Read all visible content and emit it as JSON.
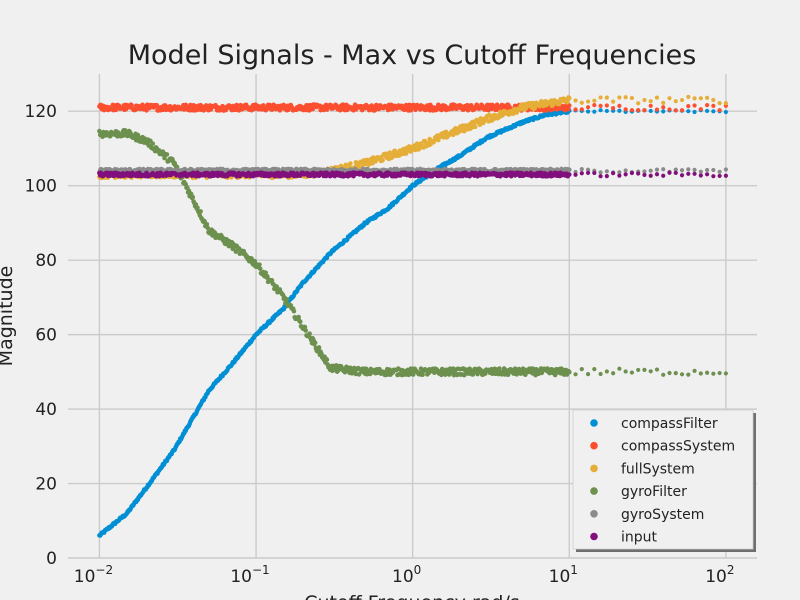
{
  "chart_data": {
    "type": "scatter",
    "title": "Model Signals - Max vs Cutoff Frequencies",
    "xlabel": "Cutoff Frequency rad/s",
    "ylabel": "Magnitude",
    "xscale": "log",
    "xlim": [
      0.0063,
      158
    ],
    "ylim": [
      0,
      130
    ],
    "x_ticks": [
      {
        "value": 0.01,
        "base": "10",
        "exp": "−2"
      },
      {
        "value": 0.1,
        "base": "10",
        "exp": "−1"
      },
      {
        "value": 1,
        "base": "10",
        "exp": "0"
      },
      {
        "value": 10,
        "base": "10",
        "exp": "1"
      },
      {
        "value": 100,
        "base": "10",
        "exp": "2"
      }
    ],
    "y_ticks": [
      "0",
      "20",
      "40",
      "60",
      "80",
      "100",
      "120"
    ],
    "grid": true,
    "legend_position": "lower-right",
    "series": [
      {
        "name": "compassFilter",
        "color": "#008fd5",
        "x": [
          0.01,
          0.015,
          0.02,
          0.03,
          0.05,
          0.07,
          0.1,
          0.15,
          0.2,
          0.3,
          0.5,
          0.7,
          1.0,
          1.5,
          2,
          3,
          5,
          7,
          10,
          15,
          20,
          30,
          50,
          70,
          100
        ],
        "values": [
          6,
          12,
          19,
          29,
          45,
          52,
          60,
          67,
          74,
          82,
          90,
          94,
          100,
          105,
          108,
          113,
          117,
          119,
          120,
          120,
          120,
          120,
          120,
          120,
          120
        ]
      },
      {
        "name": "compassSystem",
        "color": "#fc4f30",
        "x": [
          0.01,
          0.02,
          0.05,
          0.1,
          0.2,
          0.5,
          1,
          2,
          5,
          10,
          20,
          50,
          100
        ],
        "values": [
          121,
          121,
          121,
          121,
          121,
          121,
          121,
          121,
          121,
          121,
          121,
          121,
          121
        ]
      },
      {
        "name": "fullSystem",
        "color": "#e5ae38",
        "x": [
          0.01,
          0.05,
          0.1,
          0.2,
          0.3,
          0.5,
          0.7,
          1.0,
          1.5,
          2,
          3,
          5,
          7,
          10,
          20,
          50,
          100
        ],
        "values": [
          103,
          103,
          103,
          103,
          104,
          106,
          108,
          110,
          113,
          115,
          118,
          121,
          122,
          123,
          123,
          123,
          123
        ]
      },
      {
        "name": "gyroFilter",
        "color": "#6d904f",
        "x": [
          0.01,
          0.015,
          0.02,
          0.03,
          0.04,
          0.05,
          0.07,
          0.1,
          0.15,
          0.2,
          0.3,
          0.5,
          1,
          2,
          5,
          10,
          20,
          50,
          100
        ],
        "values": [
          114,
          114,
          112,
          106,
          96,
          88,
          84,
          79,
          70,
          62,
          51,
          50,
          50,
          50,
          50,
          50,
          50,
          50,
          50
        ]
      },
      {
        "name": "gyroSystem",
        "color": "#8b8b8b",
        "x": [
          0.01,
          0.02,
          0.05,
          0.1,
          0.2,
          0.5,
          1,
          2,
          5,
          10,
          20,
          50,
          100
        ],
        "values": [
          104,
          104,
          104,
          104,
          104,
          104,
          104,
          104,
          104,
          104,
          104,
          104,
          104
        ]
      },
      {
        "name": "input",
        "color": "#810f7c",
        "x": [
          0.01,
          0.02,
          0.05,
          0.1,
          0.2,
          0.5,
          1,
          2,
          5,
          10,
          20,
          50,
          100
        ],
        "values": [
          103,
          103,
          103,
          103,
          103,
          103,
          103,
          103,
          103,
          103,
          103,
          103,
          103
        ]
      }
    ]
  }
}
